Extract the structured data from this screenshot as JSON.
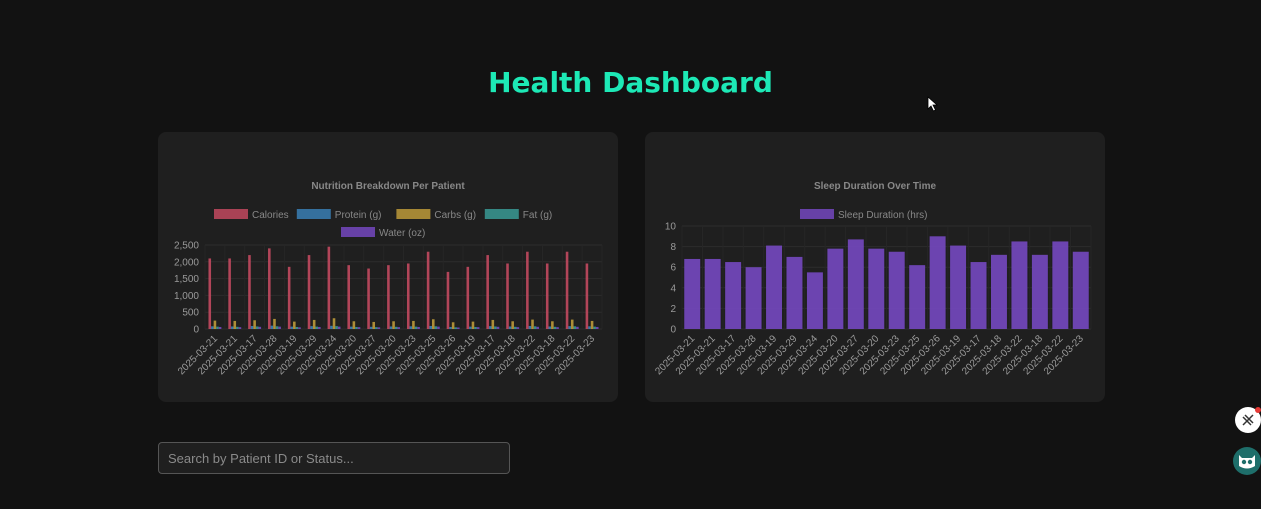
{
  "page": {
    "title": "Health Dashboard"
  },
  "search": {
    "placeholder": "Search by Patient ID or Status..."
  },
  "colors": {
    "accent": "#1de9b6",
    "calories": "#c2495f",
    "protein": "#3a7fb5",
    "carbs": "#bd9a3a",
    "fat": "#3a9a95",
    "water": "#7448c0",
    "sleep": "#7448c0"
  },
  "icons": {
    "cursor": "mouse-pointer-icon",
    "tool": "tools-icon",
    "assistant": "owl-icon"
  },
  "chart_data": [
    {
      "type": "bar",
      "title": "Nutrition Breakdown Per Patient",
      "categories": [
        "2025-03-21",
        "2025-03-21",
        "2025-03-17",
        "2025-03-28",
        "2025-03-19",
        "2025-03-29",
        "2025-03-24",
        "2025-03-20",
        "2025-03-27",
        "2025-03-20",
        "2025-03-23",
        "2025-03-25",
        "2025-03-26",
        "2025-03-19",
        "2025-03-17",
        "2025-03-18",
        "2025-03-22",
        "2025-03-18",
        "2025-03-22",
        "2025-03-23"
      ],
      "series": [
        {
          "name": "Calories",
          "values": [
            2100,
            2100,
            2200,
            2400,
            1850,
            2200,
            2450,
            1900,
            1800,
            1900,
            1950,
            2300,
            1700,
            1850,
            2200,
            1950,
            2300,
            1950,
            2300,
            1950
          ]
        },
        {
          "name": "Protein (g)",
          "values": [
            80,
            75,
            90,
            100,
            70,
            85,
            95,
            70,
            65,
            75,
            80,
            90,
            60,
            70,
            85,
            75,
            90,
            75,
            85,
            80
          ]
        },
        {
          "name": "Carbs (g)",
          "values": [
            250,
            240,
            260,
            300,
            220,
            270,
            320,
            230,
            210,
            230,
            240,
            290,
            200,
            220,
            270,
            230,
            280,
            230,
            280,
            240
          ]
        },
        {
          "name": "Fat (g)",
          "values": [
            70,
            65,
            75,
            80,
            60,
            70,
            85,
            60,
            55,
            65,
            70,
            80,
            50,
            60,
            75,
            65,
            80,
            65,
            80,
            70
          ]
        },
        {
          "name": "Water (oz)",
          "values": [
            60,
            55,
            65,
            70,
            50,
            60,
            70,
            55,
            50,
            55,
            60,
            70,
            45,
            55,
            65,
            55,
            65,
            55,
            65,
            60
          ]
        }
      ],
      "ylim": [
        0,
        2500
      ],
      "yticks": [
        "0",
        "500",
        "1,000",
        "1,500",
        "2,000",
        "2,500"
      ],
      "legend": "top"
    },
    {
      "type": "bar",
      "title": "Sleep Duration Over Time",
      "categories": [
        "2025-03-21",
        "2025-03-21",
        "2025-03-17",
        "2025-03-28",
        "2025-03-19",
        "2025-03-29",
        "2025-03-24",
        "2025-03-20",
        "2025-03-27",
        "2025-03-20",
        "2025-03-23",
        "2025-03-25",
        "2025-03-26",
        "2025-03-19",
        "2025-03-17",
        "2025-03-18",
        "2025-03-22",
        "2025-03-18",
        "2025-03-22",
        "2025-03-23"
      ],
      "series": [
        {
          "name": "Sleep Duration (hrs)",
          "values": [
            6.8,
            6.8,
            6.5,
            6.0,
            8.1,
            7.0,
            5.5,
            7.8,
            8.7,
            7.8,
            7.5,
            6.2,
            9.0,
            8.1,
            6.5,
            7.2,
            8.5,
            7.2,
            8.5,
            7.5
          ]
        }
      ],
      "ylim": [
        0,
        10
      ],
      "yticks": [
        "0",
        "2",
        "4",
        "6",
        "8",
        "10"
      ],
      "legend": "top"
    }
  ]
}
